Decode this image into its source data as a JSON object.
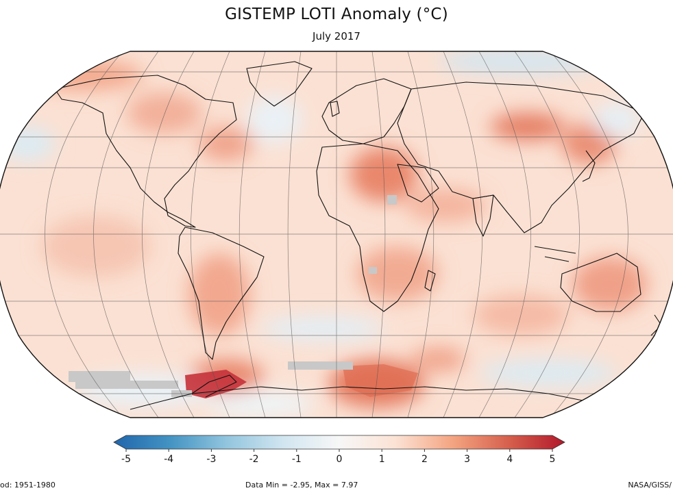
{
  "header": {
    "title": "GISTEMP LOTI Anomaly (°C)",
    "subtitle": "July 2017"
  },
  "colorbar": {
    "ticks": [
      "-5",
      "-4",
      "-3",
      "-2",
      "-1",
      "0",
      "1",
      "2",
      "3",
      "4",
      "5"
    ],
    "colors": [
      "#2166ac",
      "#4393c3",
      "#92c5de",
      "#d1e5f0",
      "#f7f7f7",
      "#fbe2d4",
      "#f4a582",
      "#d6604d",
      "#b2182b"
    ]
  },
  "footer": {
    "left": "od: 1951-1980",
    "mid": "Data Min = -2.95, Max = 7.97",
    "right": "NASA/GISS/"
  },
  "map": {
    "projection": "Robinson",
    "ocean_base_color": "#fbe0d2",
    "missing_data_color": "#c8c8c8"
  }
}
